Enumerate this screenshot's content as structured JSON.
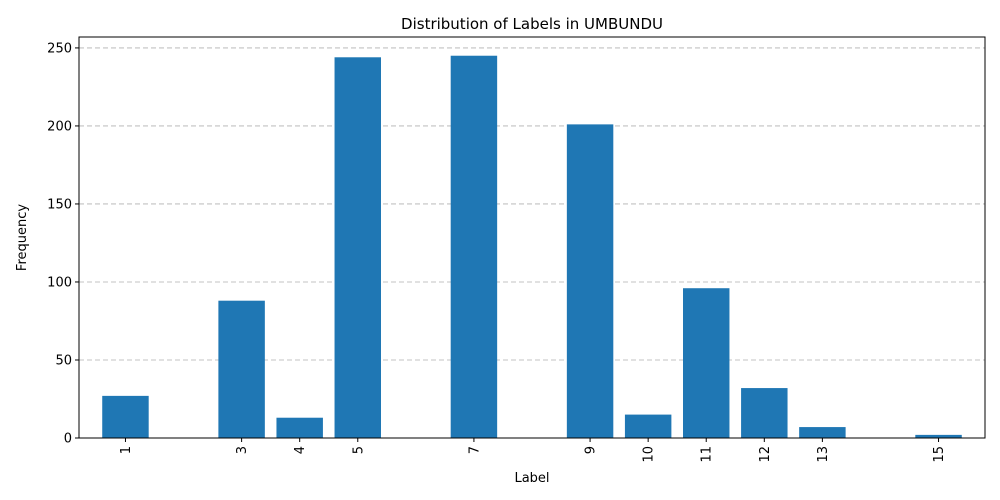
{
  "chart_data": {
    "type": "bar",
    "title": "Distribution of Labels in UMBUNDU",
    "xlabel": "Label",
    "ylabel": "Frequency",
    "categories": [
      "1",
      "3",
      "4",
      "5",
      "7",
      "9",
      "10",
      "11",
      "12",
      "13",
      "15"
    ],
    "x": [
      1,
      3,
      4,
      5,
      7,
      9,
      10,
      11,
      12,
      13,
      15
    ],
    "values": [
      27,
      88,
      13,
      244,
      245,
      201,
      15,
      96,
      32,
      7,
      2
    ],
    "ylim": [
      0,
      257
    ],
    "xlim": [
      0.2,
      15.8
    ],
    "yticks": [
      0,
      50,
      100,
      150,
      200,
      250
    ],
    "grid": "y-dashed",
    "tick_label_rotation": "vertical",
    "bar_color": "#1f77b4"
  }
}
